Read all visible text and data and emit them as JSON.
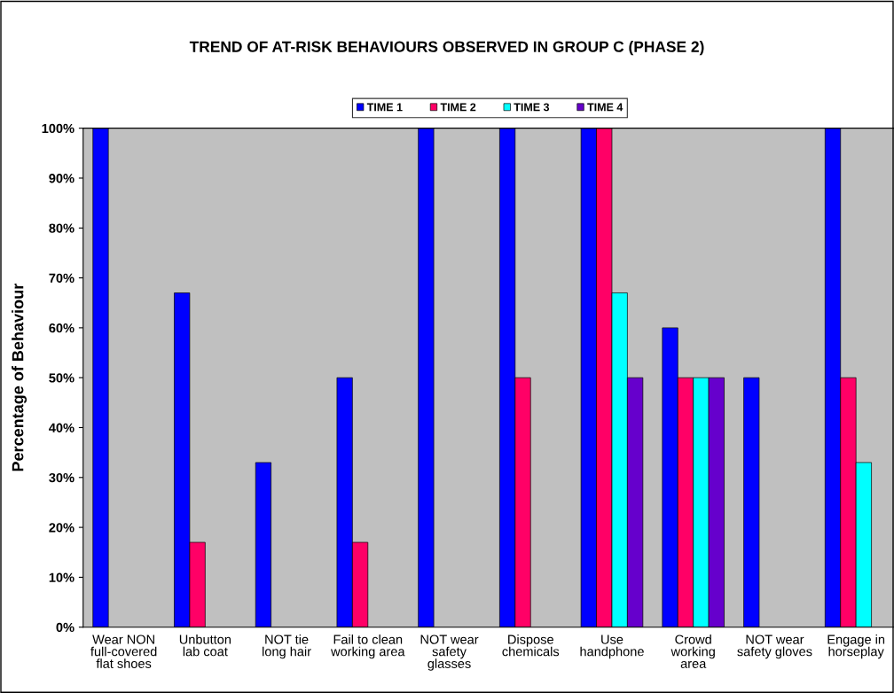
{
  "chart_data": {
    "type": "bar",
    "title": "TREND OF AT-RISK BEHAVIOURS OBSERVED IN GROUP C (PHASE 2)",
    "ylabel": "Percentage of Behaviour",
    "categories": [
      "Wear NON\nfull-covered\nflat shoes",
      "Unbutton\nlab coat",
      "NOT tie\nlong hair",
      "Fail to clean\nworking area",
      "NOT wear\nsafety\nglasses",
      "Dispose\nchemicals",
      "Use\nhandphone",
      "Crowd\nworking\narea",
      "NOT wear\nsafety gloves",
      "Engage in\nhorseplay"
    ],
    "series": [
      {
        "name": "TIME 1",
        "color": "#0000ff",
        "values": [
          100,
          67,
          33,
          50,
          100,
          100,
          100,
          60,
          50,
          100
        ]
      },
      {
        "name": "TIME 2",
        "color": "#ff0066",
        "values": [
          null,
          17,
          null,
          17,
          null,
          50,
          100,
          50,
          null,
          50
        ]
      },
      {
        "name": "TIME 3",
        "color": "#00ffff",
        "values": [
          null,
          null,
          null,
          null,
          null,
          null,
          67,
          50,
          null,
          33
        ]
      },
      {
        "name": "TIME 4",
        "color": "#6600cc",
        "values": [
          null,
          null,
          null,
          null,
          null,
          null,
          50,
          50,
          null,
          null
        ]
      }
    ],
    "ylim": [
      0,
      100
    ],
    "yticks": [
      {
        "value": 0,
        "label": "0%"
      },
      {
        "value": 10,
        "label": "10%"
      },
      {
        "value": 20,
        "label": "20%"
      },
      {
        "value": 30,
        "label": "30%"
      },
      {
        "value": 40,
        "label": "40%"
      },
      {
        "value": 50,
        "label": "50%"
      },
      {
        "value": 60,
        "label": "60%"
      },
      {
        "value": 70,
        "label": "70%"
      },
      {
        "value": 80,
        "label": "80%"
      },
      {
        "value": 90,
        "label": "90%"
      },
      {
        "value": 100,
        "label": "100%"
      }
    ],
    "grid": false,
    "legend": "top"
  }
}
